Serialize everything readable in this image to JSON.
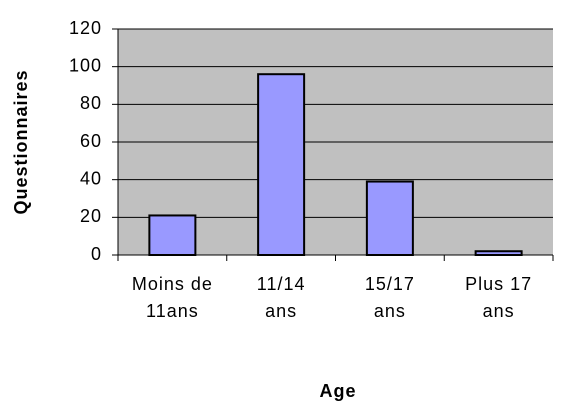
{
  "chart_data": {
    "type": "bar",
    "categories": [
      "Moins de 11ans",
      "11/14 ans",
      "15/17 ans",
      "Plus 17 ans"
    ],
    "values": [
      21,
      96,
      39,
      2
    ],
    "color": "#9999ff",
    "ylim": [
      0,
      120
    ],
    "yticks": [
      0,
      20,
      40,
      60,
      80,
      100,
      120
    ],
    "grid": true,
    "ylabel": "Questionnaires",
    "xlabel": "Age"
  }
}
